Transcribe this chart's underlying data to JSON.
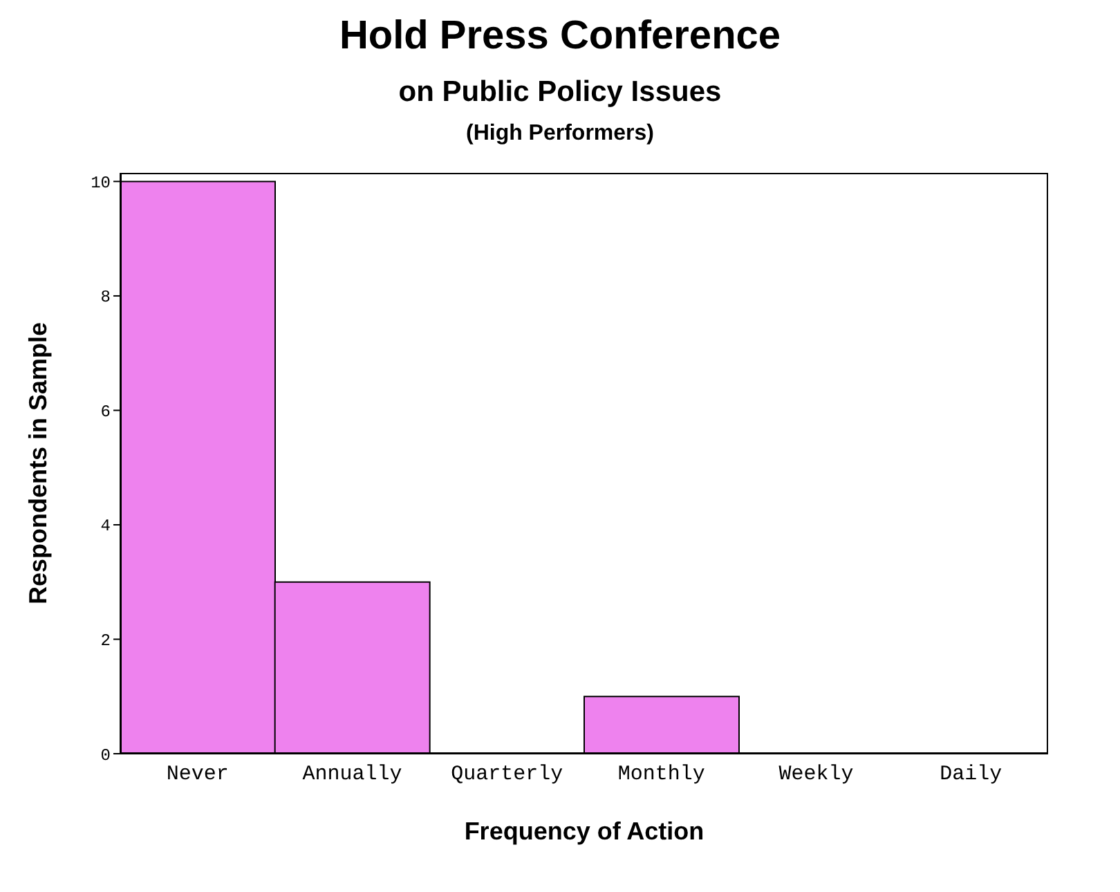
{
  "chart_data": {
    "type": "bar",
    "title": "Hold Press Conference",
    "subtitle": "on Public Policy Issues",
    "annotations": [
      "(High Performers)"
    ],
    "xlabel": "Frequency of Action",
    "ylabel": "Respondents in Sample",
    "categories": [
      "Never",
      "Annually",
      "Quarterly",
      "Monthly",
      "Weekly",
      "Daily"
    ],
    "values": [
      10,
      3,
      0,
      1,
      0,
      0
    ],
    "color": "#ee82ee",
    "ylim": [
      0,
      10.15
    ],
    "yticks": [
      0,
      2,
      4,
      6,
      8,
      10
    ],
    "grid": false,
    "legend": false
  }
}
